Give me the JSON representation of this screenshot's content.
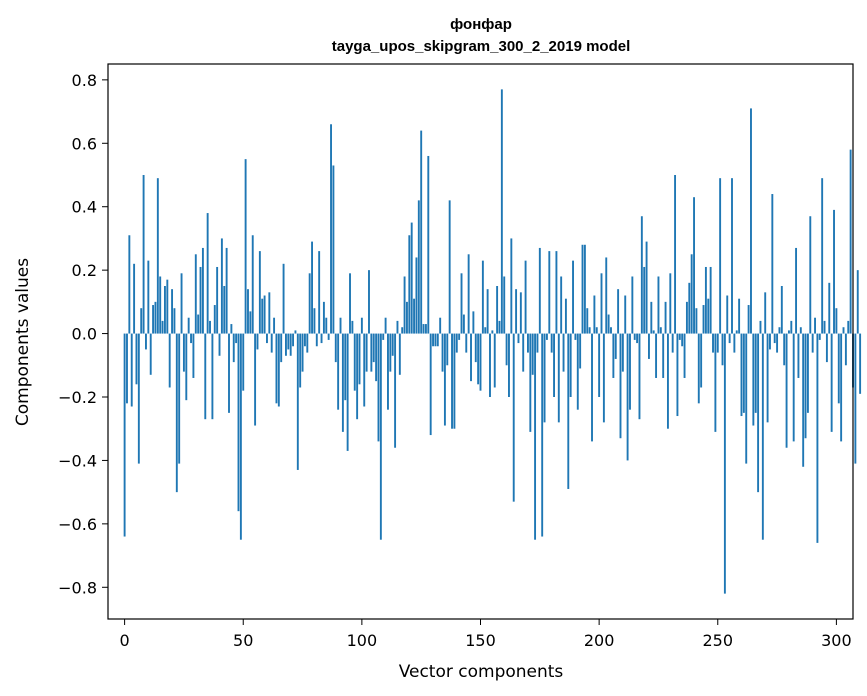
{
  "chart_data": {
    "type": "bar",
    "title": "фонфар",
    "subtitle": "tayga_upos_skipgram_300_2_2019 model",
    "xlabel": "Vector components",
    "ylabel": "Components values",
    "xlim": [
      -7,
      307
    ],
    "ylim": [
      -0.9,
      0.85
    ],
    "xticks": [
      0,
      50,
      100,
      150,
      200,
      250,
      300
    ],
    "yticks": [
      -0.8,
      -0.6,
      -0.4,
      -0.2,
      0.0,
      0.2,
      0.4,
      0.6,
      0.8
    ],
    "ytick_labels": [
      "−0.8",
      "−0.6",
      "−0.4",
      "−0.2",
      "0.0",
      "0.2",
      "0.4",
      "0.6",
      "0.8"
    ],
    "bar_color": "#1f77b4",
    "grid": false,
    "legend": "none",
    "values": [
      -0.64,
      -0.22,
      0.31,
      -0.23,
      0.22,
      -0.16,
      -0.41,
      0.08,
      0.5,
      -0.05,
      0.23,
      -0.13,
      0.09,
      0.1,
      0.49,
      0.18,
      0.04,
      0.15,
      0.17,
      -0.17,
      0.14,
      0.08,
      -0.5,
      -0.41,
      0.19,
      -0.12,
      -0.21,
      0.05,
      -0.03,
      -0.14,
      0.25,
      0.06,
      0.21,
      0.27,
      -0.27,
      0.38,
      0.04,
      -0.27,
      0.09,
      0.21,
      -0.07,
      0.3,
      0.15,
      0.27,
      -0.25,
      0.03,
      -0.09,
      -0.03,
      -0.56,
      -0.65,
      -0.18,
      0.55,
      0.14,
      0.07,
      0.31,
      -0.29,
      -0.05,
      0.26,
      0.11,
      0.12,
      -0.03,
      0.13,
      -0.06,
      0.05,
      -0.22,
      -0.23,
      -0.09,
      0.22,
      -0.07,
      -0.05,
      -0.07,
      -0.04,
      0.01,
      -0.43,
      -0.17,
      -0.12,
      -0.04,
      -0.06,
      0.19,
      0.29,
      0.08,
      -0.04,
      0.26,
      -0.03,
      0.1,
      0.05,
      -0.02,
      0.66,
      0.53,
      -0.09,
      -0.24,
      0.05,
      -0.31,
      -0.21,
      -0.37,
      0.19,
      0.04,
      -0.18,
      -0.27,
      -0.16,
      0.05,
      -0.23,
      -0.12,
      0.2,
      -0.12,
      -0.09,
      -0.15,
      -0.34,
      -0.65,
      -0.02,
      0.05,
      -0.24,
      -0.12,
      -0.07,
      -0.36,
      0.04,
      -0.13,
      0.02,
      0.18,
      0.1,
      0.31,
      0.35,
      0.11,
      0.24,
      0.42,
      0.64,
      0.03,
      0.03,
      0.56,
      -0.32,
      -0.04,
      -0.04,
      -0.04,
      0.05,
      -0.12,
      -0.29,
      -0.1,
      0.42,
      -0.3,
      -0.3,
      -0.06,
      -0.02,
      0.19,
      0.06,
      -0.06,
      0.25,
      -0.15,
      0.07,
      -0.09,
      -0.16,
      -0.18,
      0.23,
      0.02,
      0.14,
      -0.2,
      0.01,
      -0.17,
      0.15,
      0.04,
      0.77,
      0.18,
      -0.1,
      -0.2,
      0.3,
      -0.53,
      0.14,
      -0.03,
      0.13,
      -0.12,
      0.23,
      -0.06,
      -0.31,
      -0.13,
      -0.65,
      -0.06,
      0.27,
      -0.64,
      -0.28,
      -0.02,
      0.26,
      -0.06,
      -0.2,
      0.26,
      -0.28,
      0.18,
      -0.12,
      0.11,
      -0.49,
      -0.2,
      0.23,
      -0.02,
      -0.24,
      -0.11,
      0.28,
      0.28,
      0.08,
      0.02,
      -0.34,
      0.12,
      0.02,
      -0.2,
      0.19,
      -0.28,
      0.24,
      0.06,
      0.02,
      -0.14,
      -0.08,
      0.14,
      -0.33,
      -0.12,
      0.12,
      -0.4,
      -0.24,
      0.18,
      -0.02,
      -0.03,
      -0.27,
      0.37,
      0.21,
      0.29,
      -0.08,
      0.1,
      0.01,
      -0.14,
      0.18,
      0.02,
      -0.14,
      0.1,
      -0.3,
      0.19,
      -0.06,
      0.5,
      -0.26,
      -0.02,
      -0.04,
      -0.14,
      0.1,
      0.16,
      0.25,
      0.43,
      0.08,
      -0.22,
      -0.17,
      0.09,
      0.21,
      0.11,
      0.21,
      -0.06,
      -0.31,
      -0.06,
      0.49,
      -0.1,
      -0.82,
      0.12,
      -0.03,
      0.49,
      -0.06,
      0.01,
      0.11,
      -0.26,
      -0.25,
      -0.41,
      0.09,
      0.71,
      -0.29,
      -0.25,
      -0.5,
      0.04,
      -0.65,
      0.13,
      -0.28,
      -0.05,
      0.44,
      -0.03,
      -0.06,
      0.02,
      0.15,
      -0.1,
      -0.36,
      0.01,
      0.04,
      -0.34,
      0.27,
      -0.14,
      0.02,
      -0.42,
      -0.33,
      -0.25,
      0.37,
      -0.06,
      0.05,
      -0.66,
      -0.02,
      0.49,
      0.04,
      -0.09,
      0.16,
      -0.31,
      0.39,
      0.08,
      -0.22,
      -0.34,
      0.02,
      -0.1,
      0.04,
      0.58,
      -0.17,
      -0.41,
      0.2,
      -0.19
    ]
  }
}
